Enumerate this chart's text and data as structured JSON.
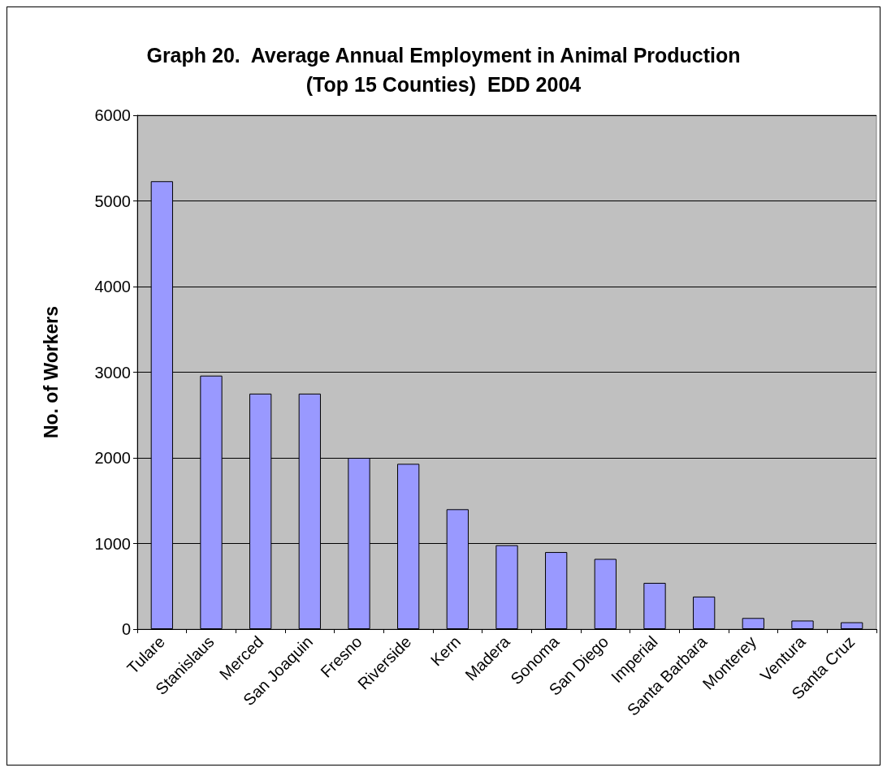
{
  "chart_data": {
    "type": "bar",
    "title": "Graph 20.  Average Annual Employment in Animal Production\n(Top 15 Counties)  EDD 2004",
    "ylabel": "No. of Workers",
    "categories": [
      "Tulare",
      "Stanislaus",
      "Merced",
      "San Joaquin",
      "Fresno",
      "Riverside",
      "Kern",
      "Madera",
      "Sonoma",
      "San Diego",
      "Imperial",
      "Santa Barbara",
      "Monterey",
      "Ventura",
      "Santa Cruz"
    ],
    "values": [
      5230,
      2960,
      2750,
      2750,
      2000,
      1930,
      1400,
      980,
      900,
      820,
      540,
      380,
      130,
      100,
      80
    ],
    "color": "#9999ff",
    "ylim": [
      0,
      6000
    ],
    "yticks": [
      0,
      1000,
      2000,
      3000,
      4000,
      5000,
      6000
    ],
    "grid": "y"
  }
}
